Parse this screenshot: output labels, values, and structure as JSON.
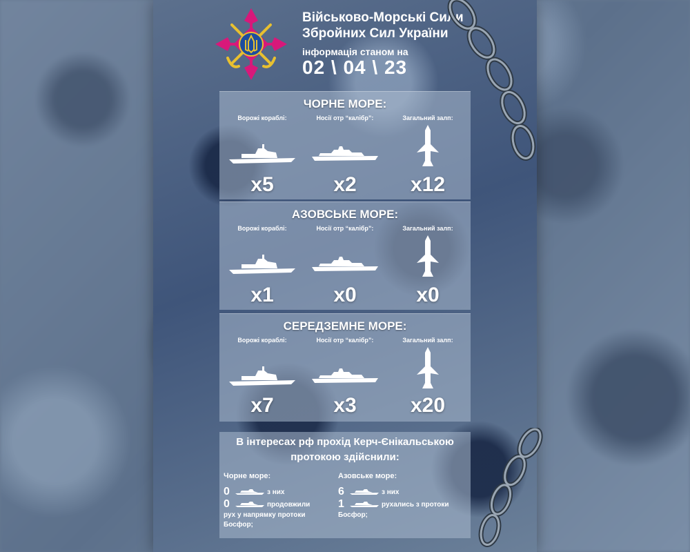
{
  "header": {
    "title_line1": "Військово-Морські Сили",
    "title_line2": "Збройних Сил України",
    "subtitle": "інформація станом на",
    "date": "02 \\ 04 \\ 23"
  },
  "colors": {
    "emblem_cross": "#d8187a",
    "emblem_anchor": "#e8c030",
    "panel_bg": "#aab9cd",
    "text": "#ffffff"
  },
  "panels": [
    {
      "title": "ЧОРНЕ МОРЕ:",
      "enemy_label": "Ворожі кораблі:",
      "carrier_label": "Носії отр “калібр”:",
      "salvo_label": "Загальний залп:",
      "enemy_count": "x5",
      "carrier_count": "x2",
      "salvo_count": "x12"
    },
    {
      "title": "АЗОВСЬКЕ МОРЕ:",
      "enemy_label": "Ворожі кораблі:",
      "carrier_label": "Носії отр “калібр”:",
      "salvo_label": "Загальний залп:",
      "enemy_count": "x1",
      "carrier_count": "x0",
      "salvo_count": "x0"
    },
    {
      "title": "СЕРЕДЗЕМНЕ МОРЕ:",
      "enemy_label": "Ворожі кораблі:",
      "carrier_label": "Носії отр “калібр”:",
      "salvo_label": "Загальний залп:",
      "enemy_count": "x7",
      "carrier_count": "x3",
      "salvo_count": "x20"
    }
  ],
  "strait": {
    "heading_line1": "В інтересах рф прохід Керч-Єнікальською",
    "heading_line2": "протокою здійснили:",
    "black_sea": {
      "label": "Чорне море:",
      "row1_num": "0",
      "row1_text": "з них",
      "row2_num": "0",
      "row2_text": "продовжили",
      "extra_line1": "рух у напрямку  протоки",
      "extra_line2": "Босфор;"
    },
    "azov_sea": {
      "label": "Азовське море:",
      "row1_num": "6",
      "row1_text": "з них",
      "row2_num": "1",
      "row2_text": "рухались з протоки",
      "extra_line1": "Босфор;"
    }
  },
  "icons": {
    "emblem": "navy-emblem-icon",
    "enemy_ship": "warship-icon",
    "carrier_ship": "cruiser-icon",
    "missile": "missile-icon",
    "chain": "chain-icon"
  }
}
